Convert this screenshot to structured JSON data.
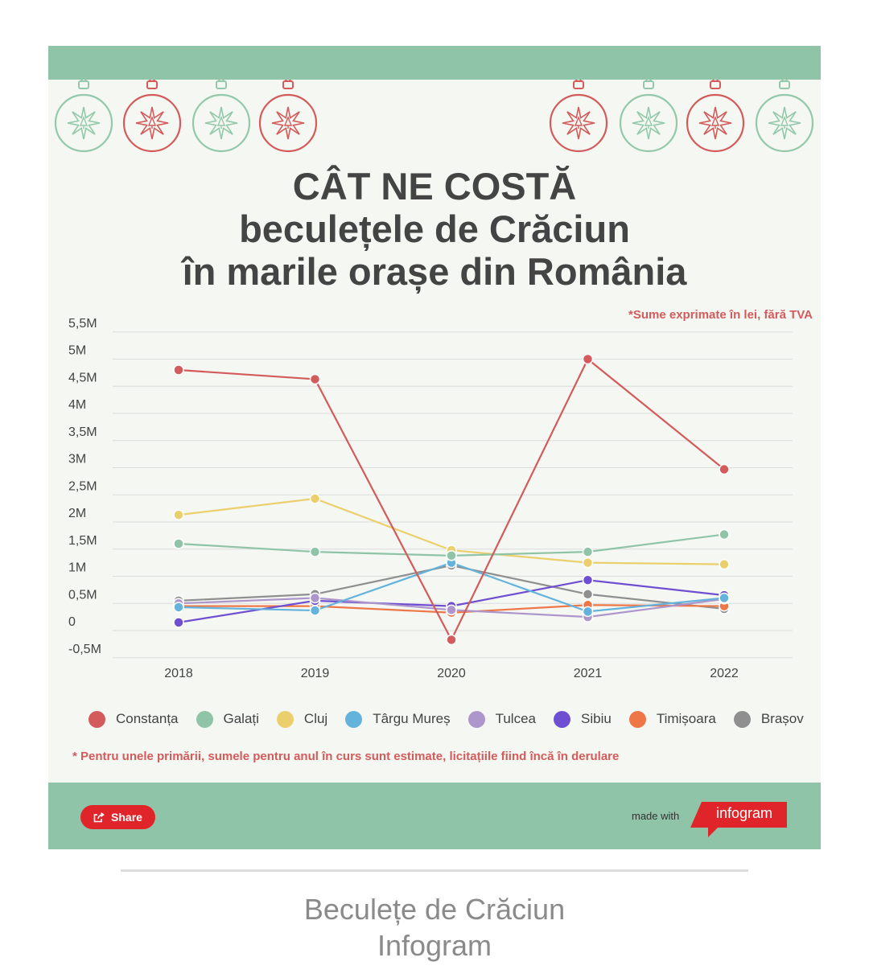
{
  "title": {
    "line1": "CÂT NE COSTĂ",
    "line2": "beculețele de Crăciun",
    "line3": "în marile orașe din România"
  },
  "note_top": "*Sume exprimate în lei, fără TVA",
  "note_bottom": "* Pentru unele primării, sumele pentru anul în curs sunt estimate, licitațiile fiind încă în derulare",
  "footer": {
    "share_label": "Share",
    "made_with": "made with",
    "brand": "infogram"
  },
  "caption": {
    "line1": "Beculețe de Crăciun",
    "line2": "Infogram"
  },
  "colors": {
    "header_green": "#8fc4a8",
    "ornament_red": "#d35b5b",
    "ornament_green": "#93c9aa",
    "accent_red": "#e0252a"
  },
  "chart_data": {
    "type": "line",
    "categories": [
      "2018",
      "2019",
      "2020",
      "2021",
      "2022"
    ],
    "y_ticks": [
      "-0,5M",
      "0",
      "0,5M",
      "1M",
      "1,5M",
      "2M",
      "2,5M",
      "3M",
      "3,5M",
      "4M",
      "4,5M",
      "5M",
      "5,5M"
    ],
    "y_tick_values": [
      -0.5,
      0,
      0.5,
      1,
      1.5,
      2,
      2.5,
      3,
      3.5,
      4,
      4.5,
      5,
      5.5
    ],
    "ylim": [
      -0.5,
      5.5
    ],
    "grid": true,
    "legend_position": "bottom",
    "series": [
      {
        "name": "Constanța",
        "color": "#d35b5b",
        "values": [
          4.8,
          4.63,
          -0.17,
          5.0,
          2.97
        ]
      },
      {
        "name": "Galați",
        "color": "#8fc4a8",
        "values": [
          1.6,
          1.45,
          1.38,
          1.45,
          1.77
        ]
      },
      {
        "name": "Cluj",
        "color": "#eccf6d",
        "values": [
          2.13,
          2.43,
          1.48,
          1.25,
          1.22
        ]
      },
      {
        "name": "Târgu Mureș",
        "color": "#63b3dd",
        "values": [
          0.43,
          0.37,
          1.25,
          0.35,
          0.6
        ]
      },
      {
        "name": "Tulcea",
        "color": "#ad96cc",
        "values": [
          0.5,
          0.6,
          0.38,
          0.25,
          0.58
        ]
      },
      {
        "name": "Sibiu",
        "color": "#6f4fd1",
        "values": [
          0.15,
          0.55,
          0.45,
          0.93,
          0.65
        ]
      },
      {
        "name": "Timișoara",
        "color": "#ee7748",
        "values": [
          0.45,
          0.45,
          0.33,
          0.47,
          0.45
        ]
      },
      {
        "name": "Brașov",
        "color": "#8f8f8f",
        "values": [
          0.55,
          0.67,
          1.2,
          0.67,
          0.4
        ]
      }
    ]
  }
}
